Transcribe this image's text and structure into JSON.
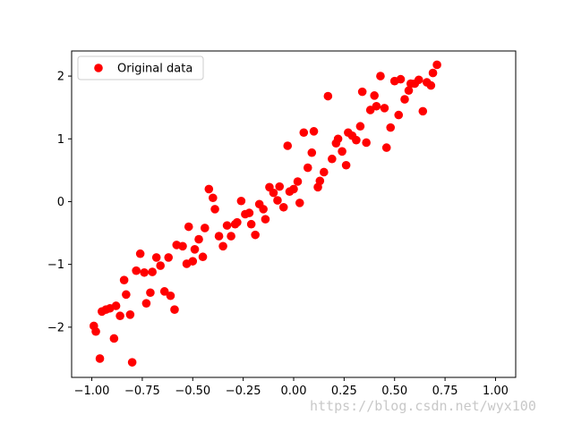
{
  "chart_data": {
    "type": "scatter",
    "title": "",
    "xlabel": "",
    "ylabel": "",
    "xlim": [
      -1.1,
      1.1
    ],
    "ylim": [
      -2.8,
      2.4
    ],
    "xticks": [
      -1.0,
      -0.75,
      -0.5,
      -0.25,
      0.0,
      0.25,
      0.5,
      0.75,
      1.0
    ],
    "xtick_labels": [
      "−1.00",
      "−0.75",
      "−0.50",
      "−0.25",
      "0.00",
      "0.25",
      "0.50",
      "0.75",
      "1.00"
    ],
    "yticks": [
      -2,
      -1,
      0,
      1,
      2
    ],
    "ytick_labels": [
      "−2",
      "−1",
      "0",
      "1",
      "2"
    ],
    "grid": false,
    "legend": {
      "position": "top-left",
      "entries": [
        {
          "label": "Original data",
          "color": "#ff0000",
          "marker": "circle"
        }
      ]
    },
    "series": [
      {
        "name": "Original data",
        "color": "#ff0000",
        "marker": "circle",
        "points": [
          [
            -0.99,
            -1.98
          ],
          [
            -0.98,
            -2.07
          ],
          [
            -0.96,
            -2.5
          ],
          [
            -0.95,
            -1.75
          ],
          [
            -0.93,
            -1.72
          ],
          [
            -0.91,
            -1.7
          ],
          [
            -0.89,
            -2.18
          ],
          [
            -0.88,
            -1.66
          ],
          [
            -0.86,
            -1.82
          ],
          [
            -0.84,
            -1.25
          ],
          [
            -0.83,
            -1.48
          ],
          [
            -0.81,
            -1.8
          ],
          [
            -0.8,
            -2.56
          ],
          [
            -0.78,
            -1.1
          ],
          [
            -0.76,
            -0.83
          ],
          [
            -0.74,
            -1.13
          ],
          [
            -0.73,
            -1.62
          ],
          [
            -0.71,
            -1.45
          ],
          [
            -0.7,
            -1.12
          ],
          [
            -0.68,
            -0.89
          ],
          [
            -0.66,
            -1.02
          ],
          [
            -0.64,
            -1.43
          ],
          [
            -0.62,
            -0.89
          ],
          [
            -0.61,
            -1.5
          ],
          [
            -0.59,
            -1.72
          ],
          [
            -0.58,
            -0.69
          ],
          [
            -0.55,
            -0.71
          ],
          [
            -0.53,
            -0.99
          ],
          [
            -0.52,
            -0.4
          ],
          [
            -0.5,
            -0.95
          ],
          [
            -0.49,
            -0.76
          ],
          [
            -0.47,
            -0.6
          ],
          [
            -0.45,
            -0.88
          ],
          [
            -0.44,
            -0.42
          ],
          [
            -0.42,
            0.2
          ],
          [
            -0.4,
            0.06
          ],
          [
            -0.39,
            -0.12
          ],
          [
            -0.37,
            -0.55
          ],
          [
            -0.35,
            -0.71
          ],
          [
            -0.33,
            -0.38
          ],
          [
            -0.31,
            -0.55
          ],
          [
            -0.29,
            -0.36
          ],
          [
            -0.28,
            -0.33
          ],
          [
            -0.26,
            0.01
          ],
          [
            -0.24,
            -0.2
          ],
          [
            -0.22,
            -0.18
          ],
          [
            -0.21,
            -0.36
          ],
          [
            -0.19,
            -0.53
          ],
          [
            -0.17,
            -0.04
          ],
          [
            -0.15,
            -0.12
          ],
          [
            -0.14,
            -0.28
          ],
          [
            -0.12,
            0.23
          ],
          [
            -0.1,
            0.14
          ],
          [
            -0.08,
            0.02
          ],
          [
            -0.07,
            0.24
          ],
          [
            -0.05,
            -0.09
          ],
          [
            -0.03,
            0.89
          ],
          [
            -0.02,
            0.16
          ],
          [
            0.0,
            0.2
          ],
          [
            0.02,
            0.32
          ],
          [
            0.03,
            -0.02
          ],
          [
            0.05,
            1.1
          ],
          [
            0.07,
            0.54
          ],
          [
            0.09,
            0.78
          ],
          [
            0.1,
            1.12
          ],
          [
            0.12,
            0.23
          ],
          [
            0.13,
            0.33
          ],
          [
            0.15,
            0.47
          ],
          [
            0.17,
            1.68
          ],
          [
            0.19,
            0.68
          ],
          [
            0.21,
            0.93
          ],
          [
            0.22,
            1.0
          ],
          [
            0.24,
            0.8
          ],
          [
            0.26,
            0.58
          ],
          [
            0.27,
            1.1
          ],
          [
            0.29,
            1.05
          ],
          [
            0.31,
            0.98
          ],
          [
            0.33,
            1.2
          ],
          [
            0.34,
            1.75
          ],
          [
            0.36,
            0.94
          ],
          [
            0.38,
            1.46
          ],
          [
            0.4,
            1.69
          ],
          [
            0.41,
            1.52
          ],
          [
            0.43,
            2.0
          ],
          [
            0.45,
            1.49
          ],
          [
            0.46,
            0.86
          ],
          [
            0.48,
            1.18
          ],
          [
            0.5,
            1.92
          ],
          [
            0.52,
            1.38
          ],
          [
            0.53,
            1.95
          ],
          [
            0.55,
            1.63
          ],
          [
            0.57,
            1.77
          ],
          [
            0.58,
            1.88
          ],
          [
            0.6,
            1.88
          ],
          [
            0.62,
            1.94
          ],
          [
            0.64,
            1.44
          ],
          [
            0.66,
            1.9
          ],
          [
            0.68,
            1.85
          ],
          [
            0.69,
            2.05
          ],
          [
            0.71,
            2.18
          ]
        ]
      }
    ]
  },
  "watermark": "https://blog.csdn.net/wyx100"
}
